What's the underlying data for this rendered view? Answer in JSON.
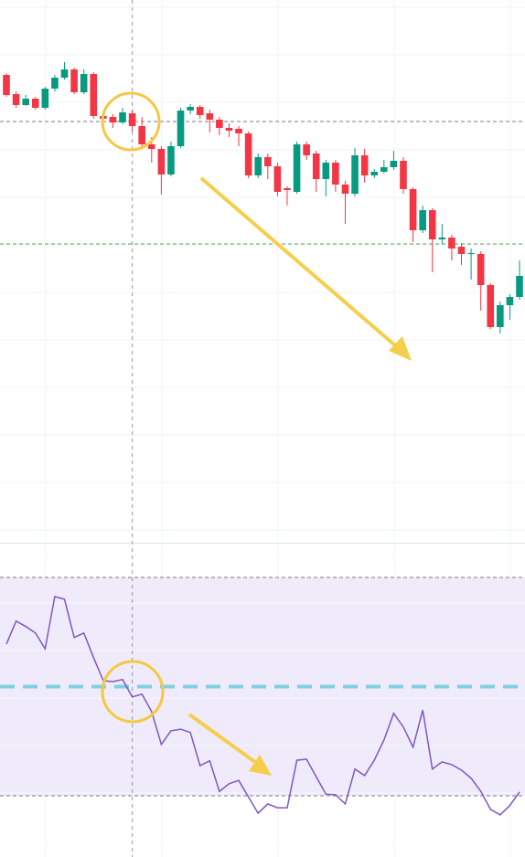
{
  "chart_data": [
    {
      "type": "candlestick",
      "categories": [
        null,
        null,
        null,
        null,
        null,
        null,
        null,
        null,
        null,
        null,
        null,
        null,
        null,
        null,
        null,
        null,
        null,
        null,
        null,
        null,
        null,
        null,
        null,
        null,
        null,
        null,
        null,
        null,
        null,
        null,
        null,
        null,
        null,
        null,
        null,
        null,
        null,
        null,
        null,
        null,
        null,
        null,
        null,
        null,
        null,
        null,
        null,
        null,
        null,
        null,
        null,
        null,
        null,
        null
      ],
      "open": [
        518,
        497,
        485,
        492,
        482,
        503,
        515,
        524,
        499,
        519,
        473,
        472,
        466,
        476,
        462,
        442,
        437,
        409,
        440,
        479,
        483,
        476,
        469,
        460,
        459,
        454,
        408,
        428,
        418,
        394,
        390,
        442,
        432,
        404,
        422,
        398,
        388,
        430,
        408,
        412,
        417,
        424,
        393,
        348,
        370,
        338,
        340,
        330,
        322,
        322,
        288,
        242,
        266,
        275
      ],
      "high": [
        520,
        500,
        496,
        494,
        505,
        518,
        532,
        526,
        524,
        521,
        478,
        475,
        482,
        480,
        472,
        450,
        440,
        445,
        482,
        486,
        485,
        480,
        472,
        465,
        462,
        456,
        432,
        432,
        422,
        396,
        445,
        445,
        435,
        425,
        425,
        402,
        438,
        437,
        415,
        425,
        435,
        428,
        395,
        375,
        372,
        355,
        343,
        334,
        328,
        325,
        290,
        270,
        278,
        315
      ],
      "low": [
        494,
        482,
        484,
        480,
        480,
        500,
        513,
        497,
        497,
        470,
        465,
        460,
        464,
        456,
        438,
        422,
        387,
        407,
        438,
        475,
        470,
        455,
        452,
        450,
        440,
        405,
        405,
        404,
        385,
        375,
        388,
        425,
        390,
        385,
        390,
        355,
        385,
        400,
        405,
        410,
        414,
        388,
        335,
        345,
        302,
        333,
        315,
        310,
        294,
        260,
        240,
        235,
        250,
        272
      ],
      "close": [
        496,
        485,
        492,
        482,
        503,
        515,
        524,
        499,
        519,
        473,
        470,
        466,
        477,
        462,
        442,
        437,
        409,
        440,
        479,
        483,
        474,
        469,
        460,
        457,
        454,
        408,
        428,
        418,
        390,
        392,
        442,
        430,
        404,
        422,
        398,
        388,
        430,
        408,
        412,
        417,
        424,
        393,
        348,
        370,
        338,
        340,
        328,
        322,
        323,
        288,
        242,
        266,
        275,
        298
      ],
      "up_color": "#089981",
      "down_color": "#f23645",
      "ylim": [
        7,
        600
      ],
      "grid": true,
      "lines": [
        {
          "value": 467,
          "color": "#787b86"
        },
        {
          "value": 333,
          "color": "#4caf50"
        }
      ],
      "crosshair_index": 13
    },
    {
      "type": "line",
      "categories": [
        null,
        null,
        null,
        null,
        null,
        null,
        null,
        null,
        null,
        null,
        null,
        null,
        null,
        null,
        null,
        null,
        null,
        null,
        null,
        null,
        null,
        null,
        null,
        null,
        null,
        null,
        null,
        null,
        null,
        null,
        null,
        null,
        null,
        null,
        null,
        null,
        null,
        null,
        null,
        null,
        null,
        null,
        null,
        null,
        null,
        null,
        null,
        null,
        null,
        null,
        null,
        null,
        null,
        null
      ],
      "values": [
        57.8,
        62.0,
        61.0,
        59.8,
        56.9,
        66.5,
        66.0,
        59.0,
        59.8,
        55.3,
        51.1,
        50.9,
        51.3,
        48.1,
        48.6,
        45.4,
        39.4,
        41.9,
        42.2,
        41.6,
        35.5,
        36.4,
        30.8,
        32.2,
        32.8,
        29.8,
        26.8,
        28.5,
        27.8,
        27.8,
        36.5,
        36.7,
        33.5,
        30.3,
        30.2,
        28.5,
        34.9,
        33.7,
        36.5,
        40.2,
        45.1,
        42.6,
        38.9,
        45.7,
        34.9,
        36.2,
        35.7,
        34.7,
        33.2,
        30.8,
        27.5,
        26.5,
        28.2,
        30.7
      ],
      "color": "#7e57c2",
      "ylim": [
        19,
        76
      ],
      "upper": 70,
      "middle": 50,
      "lower": 30,
      "band_color": "#efebfa",
      "middle_color": "#7fd0e2"
    }
  ]
}
